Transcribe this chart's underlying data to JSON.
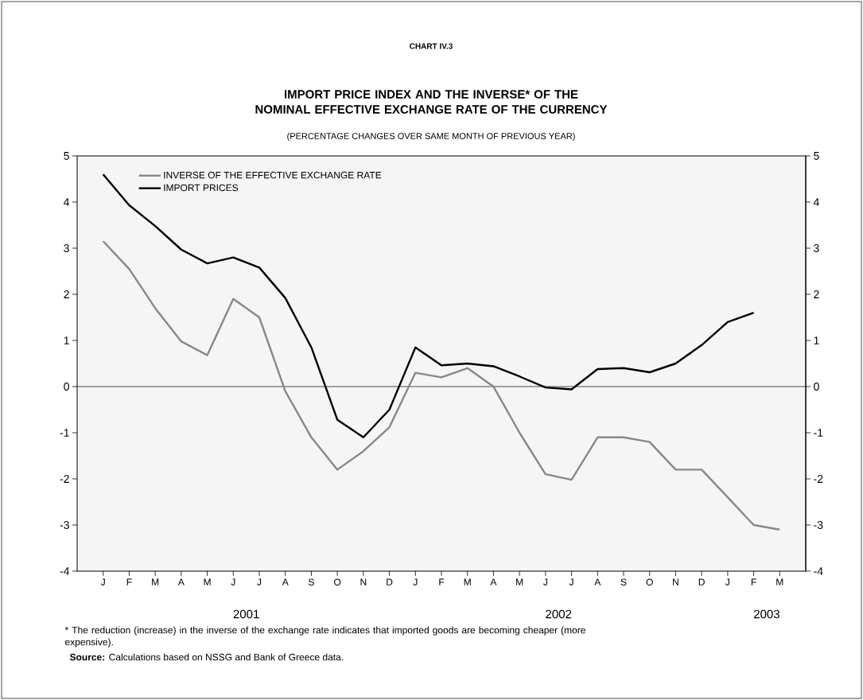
{
  "chart_data": {
    "type": "line",
    "title": "IMPORT PRICE INDEX AND THE INVERSE* OF THE NOMINAL EFFECTIVE EXCHANGE RATE OF THE CURRENCY",
    "subtitle": "(PERCENTAGE CHANGES OVER SAME MONTH OF PREVIOUS YEAR)",
    "categories": [
      "J",
      "F",
      "M",
      "A",
      "M",
      "J",
      "J",
      "A",
      "S",
      "O",
      "N",
      "D",
      "J",
      "F",
      "M",
      "A",
      "M",
      "J",
      "J",
      "A",
      "S",
      "O",
      "N",
      "D",
      "J",
      "F",
      "M"
    ],
    "series": [
      {
        "name": "INVERSE OF THE EFFECTIVE EXCHANGE RATE",
        "color": "#888888",
        "values": [
          3.15,
          2.55,
          1.7,
          0.98,
          0.68,
          1.9,
          1.5,
          -0.1,
          -1.1,
          -1.8,
          -1.4,
          -0.88,
          0.3,
          0.2,
          0.4,
          0.0,
          -1.0,
          -1.9,
          -2.02,
          -1.1,
          -1.1,
          -1.2,
          -1.8,
          -1.8,
          -2.4,
          -3.0,
          -3.1
        ]
      },
      {
        "name": "IMPORT PRICES",
        "color": "#000000",
        "values": [
          4.6,
          3.93,
          3.48,
          2.97,
          2.67,
          2.8,
          2.58,
          1.92,
          0.85,
          -0.72,
          -1.1,
          -0.5,
          0.85,
          0.46,
          0.5,
          0.44,
          0.22,
          -0.02,
          -0.06,
          0.38,
          0.4,
          0.31,
          0.5,
          0.9,
          1.4,
          1.6,
          null
        ]
      }
    ],
    "ylim": [
      -4,
      5
    ],
    "yticks": [
      -4,
      -3,
      -2,
      -1,
      0,
      1,
      2,
      3,
      4,
      5
    ],
    "y2lim": [
      -4,
      5
    ],
    "y2ticks": [
      -4,
      -3,
      -2,
      -1,
      0,
      1,
      2,
      3,
      4,
      5
    ],
    "ref_lines": [
      {
        "axis": "y",
        "value": 0
      }
    ],
    "legend": "top left",
    "annotations": [
      "CHART IV.3",
      "2001",
      "2002",
      "2003",
      "* The reduction (increase) in the inverse of the exchange rate indicates that imported goods are becoming cheaper (more expensive).",
      "**Source:** Calculations based on NSSG and Bank of Greece data."
    ]
  }
}
